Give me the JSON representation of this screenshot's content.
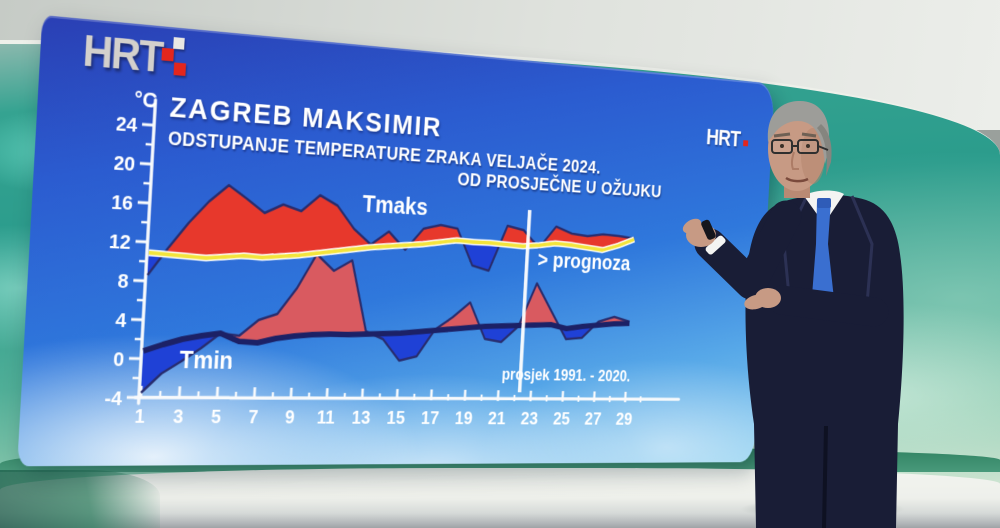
{
  "branding": {
    "logo_primary": "HRT",
    "logo_secondary": "HRT"
  },
  "header": {
    "title": "ZAGREB MAKSIMIR",
    "subtitle_line1": "ODSTUPANJE TEMPERATURE ZRAKA VELJAČE 2024.",
    "subtitle_line2": "OD PROSJEČNE U OŽUJKU"
  },
  "chart_data": {
    "type": "area",
    "title": "ZAGREB MAKSIMIR",
    "unit_label": "°C",
    "xlim": [
      1,
      29
    ],
    "ylim": [
      -4,
      26
    ],
    "x": [
      1,
      2,
      3,
      4,
      5,
      6,
      7,
      8,
      9,
      10,
      11,
      12,
      13,
      14,
      15,
      16,
      17,
      18,
      19,
      20,
      21,
      22,
      23,
      24,
      25,
      26,
      27,
      28,
      29
    ],
    "x_tick_labels": [
      "1",
      "3",
      "5",
      "7",
      "9",
      "11",
      "13",
      "15",
      "17",
      "19",
      "21",
      "23",
      "25",
      "27",
      "29"
    ],
    "y_major_ticks": [
      -4,
      0,
      4,
      8,
      12,
      16,
      20,
      24
    ],
    "y_minor_ticks": [
      -2,
      2,
      6,
      10,
      14,
      18,
      22,
      26
    ],
    "series": [
      {
        "name": "Tmaks prosjek 1991.-2020. (ožujak)",
        "values": [
          10.9,
          10.8,
          10.7,
          10.6,
          10.8,
          11.0,
          10.9,
          11.1,
          11.3,
          11.6,
          11.9,
          12.2,
          12.5,
          12.7,
          12.9,
          13.1,
          13.4,
          13.7,
          13.6,
          13.6,
          13.5,
          13.4,
          13.6,
          13.9,
          13.8,
          13.6,
          13.4,
          14.0,
          14.8
        ]
      },
      {
        "name": "Tmaks veljača 2024.",
        "values": [
          8.6,
          11.5,
          14.2,
          16.5,
          18.3,
          17.0,
          15.6,
          16.6,
          16.0,
          17.8,
          16.8,
          14.4,
          12.8,
          14.3,
          12.4,
          14.8,
          15.3,
          15.0,
          11.0,
          10.5,
          15.6,
          15.2,
          13.3,
          15.8,
          15.1,
          14.9,
          15.2,
          15.1,
          14.9
        ]
      },
      {
        "name": "Tmin prosjek 1991.-2020. (ožujak)",
        "values": [
          0.8,
          1.5,
          2.1,
          2.5,
          2.8,
          2.0,
          1.9,
          2.4,
          2.7,
          2.9,
          3.0,
          3.0,
          3.1,
          3.2,
          3.3,
          3.5,
          3.7,
          3.9,
          4.1,
          4.3,
          4.4,
          4.5,
          4.6,
          4.7,
          4.3,
          4.6,
          4.8,
          5.0,
          5.1
        ]
      },
      {
        "name": "Tmin veljača 2024.",
        "values": [
          -3.5,
          -1.5,
          -0.2,
          1.2,
          2.8,
          2.6,
          4.3,
          5.0,
          7.8,
          11.5,
          9.8,
          11.0,
          3.4,
          2.6,
          0.3,
          0.8,
          3.8,
          5.2,
          6.9,
          2.9,
          2.6,
          4.4,
          9.3,
          6.2,
          3.1,
          3.3,
          5.2,
          5.8,
          5.3
        ]
      }
    ],
    "annotations": {
      "tmaks_label": "Tmaks",
      "tmin_label": "Tmin",
      "forecast_label": "> prognoza",
      "average_label": "prosjek 1991. - 2020."
    },
    "forecast_start_day": 22.3,
    "colors": {
      "tmaks_above_fill": "#e7382c",
      "tmin_above_fill": "#d95a60",
      "below_fill": "#1f41d6",
      "avg_tmaks_line": "#f3e43c",
      "avg_tmaks_edge": "#ffffff",
      "avg_tmin_line": "#1c2166",
      "actual_edge": "#282c6d",
      "axis": "#f8fafc",
      "divider": "#ffffff",
      "tmaks_label_color": "#f3e43c",
      "tmin_label_color": "#1c2166"
    },
    "grid": false,
    "legend_position": "none"
  }
}
